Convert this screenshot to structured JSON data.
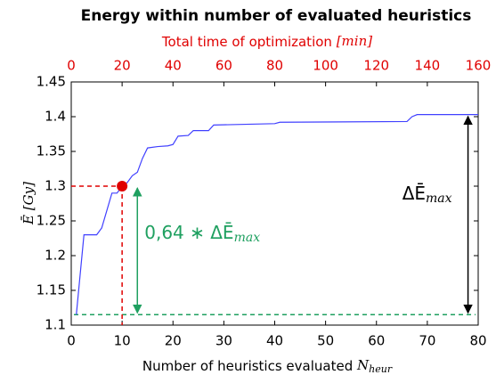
{
  "chart_data": {
    "type": "line",
    "title": "Energy within number of evaluated heuristics",
    "x2_label": {
      "text": "Total time of optimization",
      "unit": "[min]"
    },
    "x_label": {
      "text": "Number of heuristics evaluated",
      "symbol": "N",
      "subscript": "heur"
    },
    "y_label": {
      "symbol": "Ē",
      "unit": "[Gy]"
    },
    "xlim": [
      0,
      80
    ],
    "xticks": [
      0,
      10,
      20,
      30,
      40,
      50,
      60,
      70,
      80
    ],
    "x2lim": [
      0,
      160
    ],
    "x2ticks": [
      0,
      20,
      40,
      60,
      80,
      100,
      120,
      140,
      160
    ],
    "x2_color": "#e00000",
    "ylim": [
      1.1,
      1.45
    ],
    "yticks": [
      1.1,
      1.15,
      1.2,
      1.25,
      1.3,
      1.35,
      1.4,
      1.45
    ],
    "series": [
      {
        "color": "#4040ff",
        "x": [
          1,
          2.5,
          5,
          6,
          8,
          9,
          10,
          11,
          12,
          13,
          14,
          15,
          17,
          19,
          20,
          21,
          23,
          24,
          27,
          28,
          40,
          41,
          66,
          67,
          68,
          80
        ],
        "values": [
          1.115,
          1.23,
          1.23,
          1.24,
          1.29,
          1.29,
          1.3,
          1.305,
          1.315,
          1.32,
          1.34,
          1.355,
          1.357,
          1.358,
          1.36,
          1.372,
          1.373,
          1.38,
          1.38,
          1.388,
          1.39,
          1.392,
          1.393,
          1.4,
          1.403,
          1.403
        ]
      }
    ],
    "annotations": {
      "point": {
        "x": 10,
        "y": 1.3,
        "color": "#e00000"
      },
      "baseline": {
        "y": 1.115,
        "color": "#1fa060"
      },
      "partial": {
        "x": 13,
        "from": 1.115,
        "to": 1.3,
        "color": "#1fa060",
        "text": "0,64 ∗ ΔĒ",
        "subscript": "max"
      },
      "full": {
        "x": 78,
        "from": 1.115,
        "to": 1.403,
        "color": "#000000",
        "text": "ΔĒ",
        "subscript": "max"
      }
    }
  }
}
